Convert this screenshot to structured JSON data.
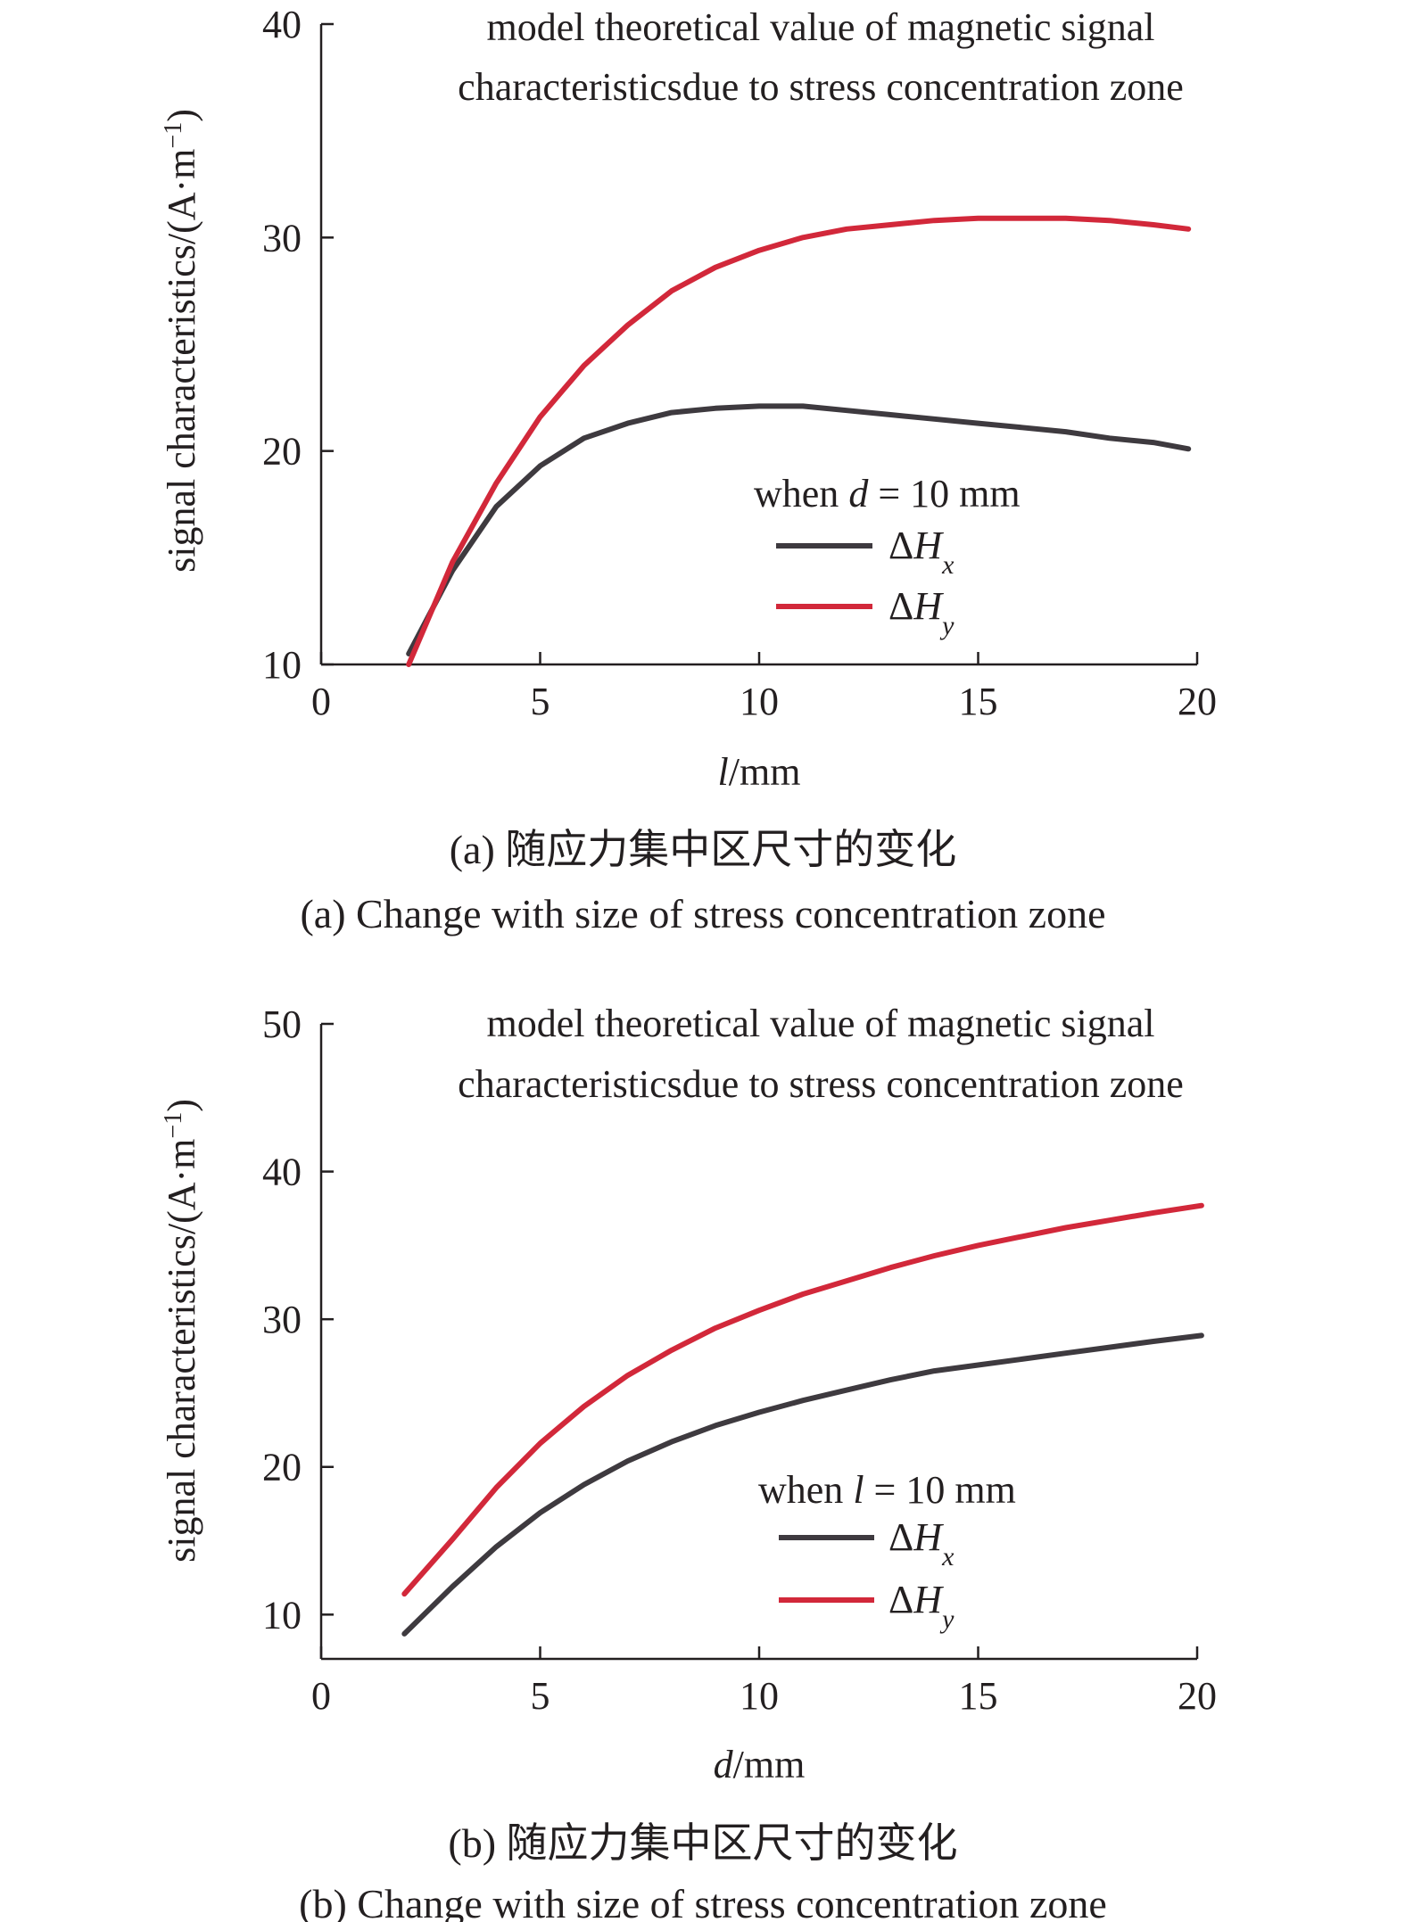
{
  "chart_data": [
    {
      "type": "line",
      "panel": "a",
      "title": [
        "model theoretical value of magnetic signal",
        "characteristicsdue to stress concentration zone"
      ],
      "xlabel": "/mm",
      "xlabel_var": "l",
      "ylabel": "signal characteristics/(A·m",
      "ylabel_sup": "−1",
      "ylabel_end": ")",
      "xlim": [
        0,
        20
      ],
      "ylim": [
        10,
        40
      ],
      "xticks": [
        0,
        5,
        10,
        15,
        20
      ],
      "yticks": [
        10,
        20,
        30,
        40
      ],
      "grid": false,
      "legend_position": "center-right",
      "legend_title_prefix": "when ",
      "legend_title_var": "d",
      "legend_title_suffix": " = 10 mm",
      "series": [
        {
          "label_prefix": "ΔH",
          "label_sub": "x",
          "color": "#3e3a3f",
          "x": [
            2,
            3,
            4,
            5,
            6,
            7,
            8,
            9,
            10,
            11,
            12,
            13,
            14,
            15,
            16,
            17,
            18,
            19,
            19.8
          ],
          "y": [
            10.5,
            14.4,
            17.4,
            19.3,
            20.6,
            21.3,
            21.8,
            22.0,
            22.1,
            22.1,
            21.9,
            21.7,
            21.5,
            21.3,
            21.1,
            20.9,
            20.6,
            20.4,
            20.1
          ]
        },
        {
          "label_prefix": "ΔH",
          "label_sub": "y",
          "color": "#d2283a",
          "x": [
            2,
            3,
            4,
            5,
            6,
            7,
            8,
            9,
            10,
            11,
            12,
            13,
            14,
            15,
            16,
            17,
            18,
            19,
            19.8
          ],
          "y": [
            10.0,
            14.8,
            18.5,
            21.6,
            24.0,
            25.9,
            27.5,
            28.6,
            29.4,
            30.0,
            30.4,
            30.6,
            30.8,
            30.9,
            30.9,
            30.9,
            30.8,
            30.6,
            30.4
          ]
        }
      ],
      "caption_cn": "(a) 随应力集中区尺寸的变化",
      "caption_en": "(a) Change with size of stress concentration zone"
    },
    {
      "type": "line",
      "panel": "b",
      "title": [
        "model theoretical value of magnetic signal",
        "characteristicsdue to stress concentration zone"
      ],
      "xlabel": "/mm",
      "xlabel_var": "d",
      "ylabel": "signal characteristics/(A·m",
      "ylabel_sup": "−1",
      "ylabel_end": ")",
      "xlim": [
        0,
        20
      ],
      "ylim": [
        7,
        50
      ],
      "xticks": [
        0,
        5,
        10,
        15,
        20
      ],
      "yticks": [
        10,
        20,
        30,
        40,
        50
      ],
      "grid": false,
      "legend_position": "center-right",
      "legend_title_prefix": "when ",
      "legend_title_var": "l",
      "legend_title_suffix": " = 10 mm",
      "series": [
        {
          "label_prefix": "ΔH",
          "label_sub": "x",
          "color": "#3e3a3f",
          "x": [
            1.9,
            3,
            4,
            5,
            6,
            7,
            8,
            9,
            10,
            11,
            12,
            13,
            14,
            15,
            16,
            17,
            18,
            19,
            20.1
          ],
          "y": [
            8.7,
            11.9,
            14.6,
            16.9,
            18.8,
            20.4,
            21.7,
            22.8,
            23.7,
            24.5,
            25.2,
            25.9,
            26.5,
            26.9,
            27.3,
            27.7,
            28.1,
            28.5,
            28.9
          ]
        },
        {
          "label_prefix": "ΔH",
          "label_sub": "y",
          "color": "#d2283a",
          "x": [
            1.9,
            3,
            4,
            5,
            6,
            7,
            8,
            9,
            10,
            11,
            12,
            13,
            14,
            15,
            16,
            17,
            18,
            19,
            20.1
          ],
          "y": [
            11.4,
            15.1,
            18.6,
            21.6,
            24.1,
            26.2,
            27.9,
            29.4,
            30.6,
            31.7,
            32.6,
            33.5,
            34.3,
            35.0,
            35.6,
            36.2,
            36.7,
            37.2,
            37.7
          ]
        }
      ],
      "caption_cn": "(b) 随应力集中区尺寸的变化",
      "caption_en": "(b) Change with size of stress concentration zone"
    }
  ]
}
